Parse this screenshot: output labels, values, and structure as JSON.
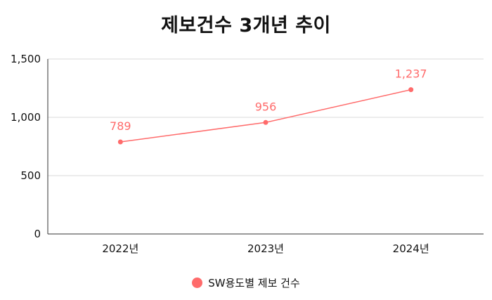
{
  "chart_data": {
    "type": "line",
    "title": "제보건수 3개년 추이",
    "categories": [
      "2022년",
      "2023년",
      "2024년"
    ],
    "series": [
      {
        "name": "SW용도별 제보 건수",
        "values": [
          789,
          956,
          1237
        ],
        "labels": [
          "789",
          "956",
          "1,237"
        ],
        "color": "#ff6b6b"
      }
    ],
    "ylim": [
      0,
      1500
    ],
    "yticks": [
      {
        "value": 0,
        "label": "0"
      },
      {
        "value": 500,
        "label": "500"
      },
      {
        "value": 1000,
        "label": "1,000"
      },
      {
        "value": 1500,
        "label": "1,500"
      }
    ],
    "xlabel": "",
    "ylabel": "",
    "grid": true,
    "legend_position": "bottom"
  }
}
